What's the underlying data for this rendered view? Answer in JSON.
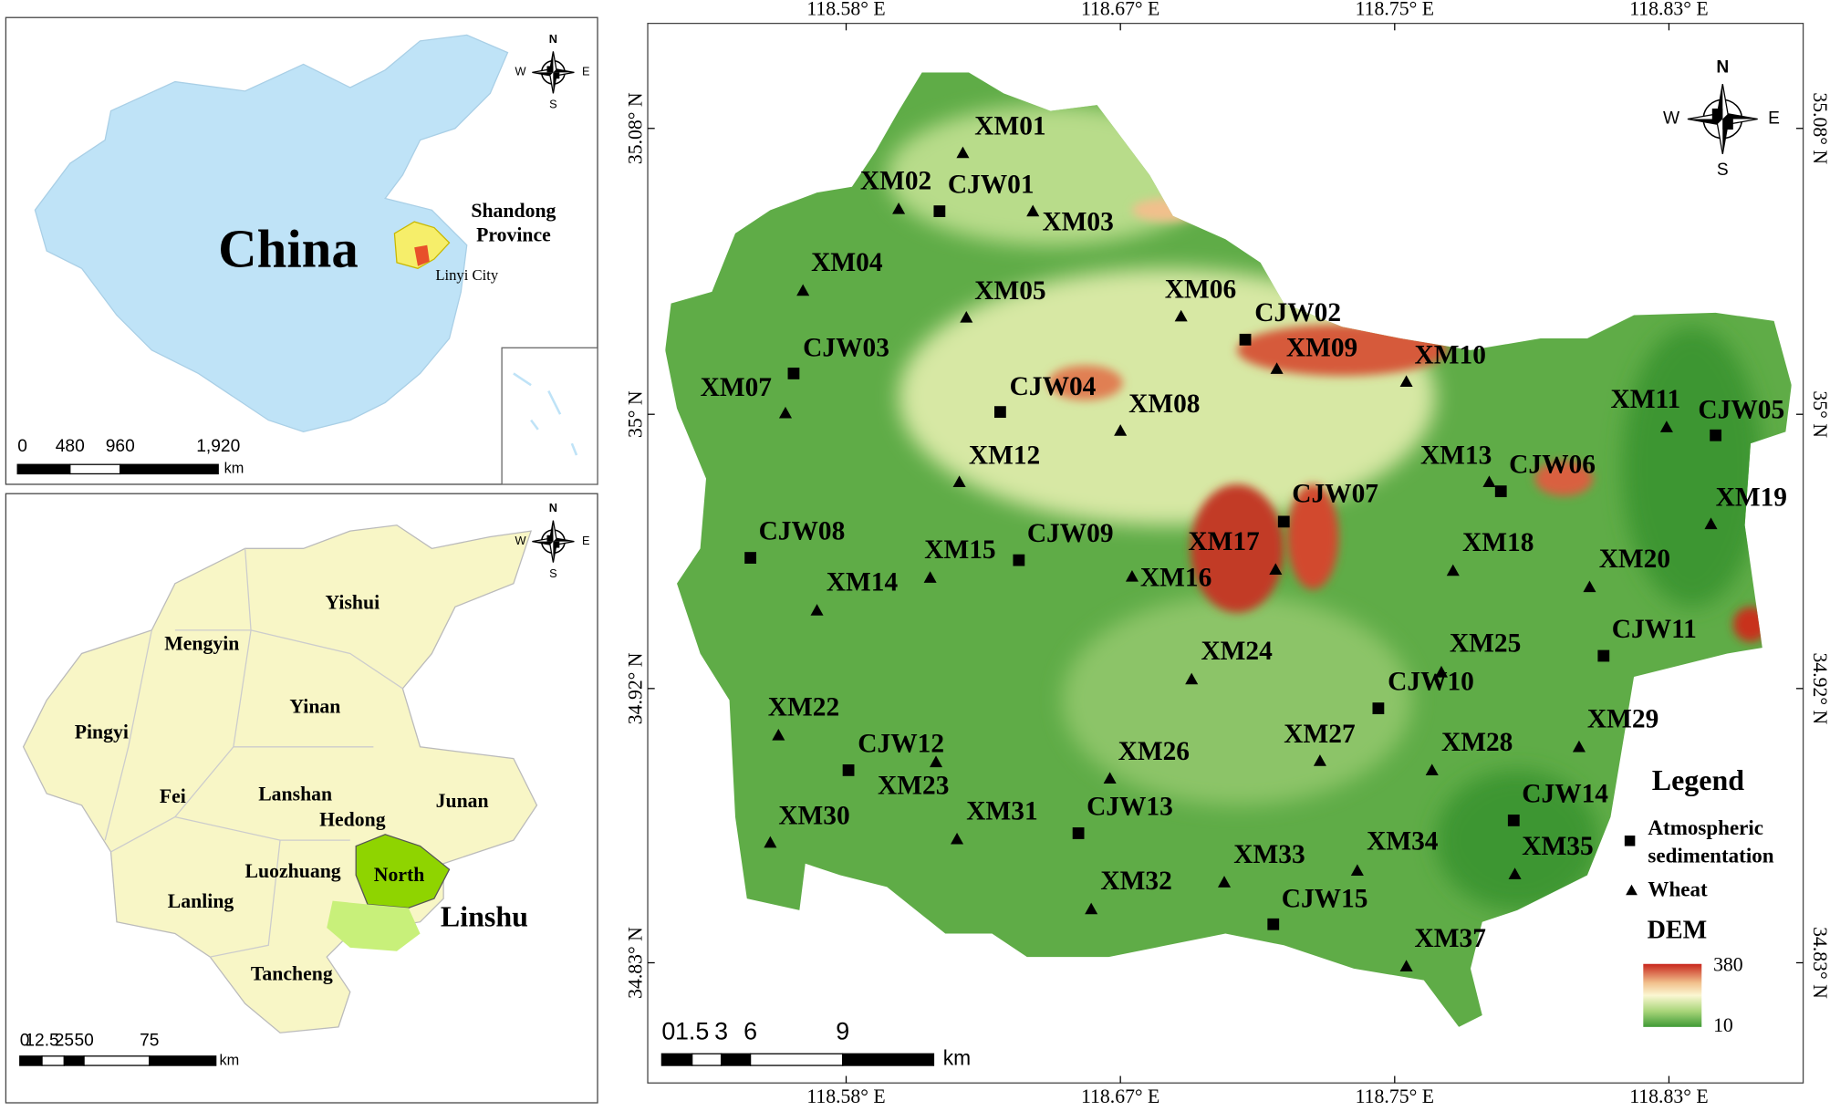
{
  "china_inset": {
    "title": "China",
    "province": [
      "Shandong",
      "Province"
    ],
    "city": "Linyi City",
    "compass": {
      "n": "N",
      "s": "S",
      "w": "W",
      "e": "E"
    },
    "scale": {
      "ticks": [
        "0",
        "480",
        "960",
        "1,920"
      ],
      "unit": "km"
    }
  },
  "linyi_inset": {
    "counties": [
      "Yishui",
      "Mengyin",
      "Yinan",
      "Pingyi",
      "Fei",
      "Lanshan",
      "Hedong",
      "Junan",
      "Luozhuang",
      "Lanling",
      "Tancheng"
    ],
    "district": "North",
    "highlight": "Linshu",
    "compass": {
      "n": "N",
      "s": "S",
      "w": "W",
      "e": "E"
    },
    "scale": {
      "ticks": [
        "0",
        "12.5",
        "25",
        "50",
        "75"
      ],
      "unit": "km"
    }
  },
  "main_map": {
    "lon_labels_top": [
      "118.58° E",
      "118.67° E",
      "118.75° E",
      "118.83° E"
    ],
    "lon_labels_bottom": [
      "118.58° E",
      "118.67° E",
      "118.75° E",
      "118.83° E"
    ],
    "lat_labels_left": [
      "35.08° N",
      "35° N",
      "34.92° N",
      "34.83° N"
    ],
    "lat_labels_right": [
      "35.08° N",
      "35° N",
      "34.92° N",
      "34.83° N"
    ],
    "wheat_sites": [
      "XM01",
      "XM02",
      "XM03",
      "XM04",
      "XM05",
      "XM06",
      "XM07",
      "XM08",
      "XM09",
      "XM10",
      "XM11",
      "XM12",
      "XM13",
      "XM14",
      "XM15",
      "XM16",
      "XM17",
      "XM18",
      "XM19",
      "XM20",
      "XM22",
      "XM23",
      "XM24",
      "XM25",
      "XM26",
      "XM27",
      "XM28",
      "XM29",
      "XM30",
      "XM31",
      "XM32",
      "XM33",
      "XM34",
      "XM35",
      "XM37"
    ],
    "sedimentation_sites": [
      "CJW01",
      "CJW02",
      "CJW03",
      "CJW04",
      "CJW05",
      "CJW06",
      "CJW07",
      "CJW08",
      "CJW09",
      "CJW10",
      "CJW11",
      "CJW12",
      "CJW13",
      "CJW14",
      "CJW15"
    ],
    "compass": {
      "n": "N",
      "s": "S",
      "w": "W",
      "e": "E"
    },
    "scale": {
      "ticks": [
        "0",
        "1.5",
        "3",
        "6",
        "9"
      ],
      "unit": "km"
    },
    "legend": {
      "title": "Legend",
      "sedimentation": [
        "Atmospheric",
        "sedimentation"
      ],
      "wheat": "Wheat",
      "dem_title": "DEM",
      "dem_max": "380",
      "dem_min": "10"
    }
  }
}
